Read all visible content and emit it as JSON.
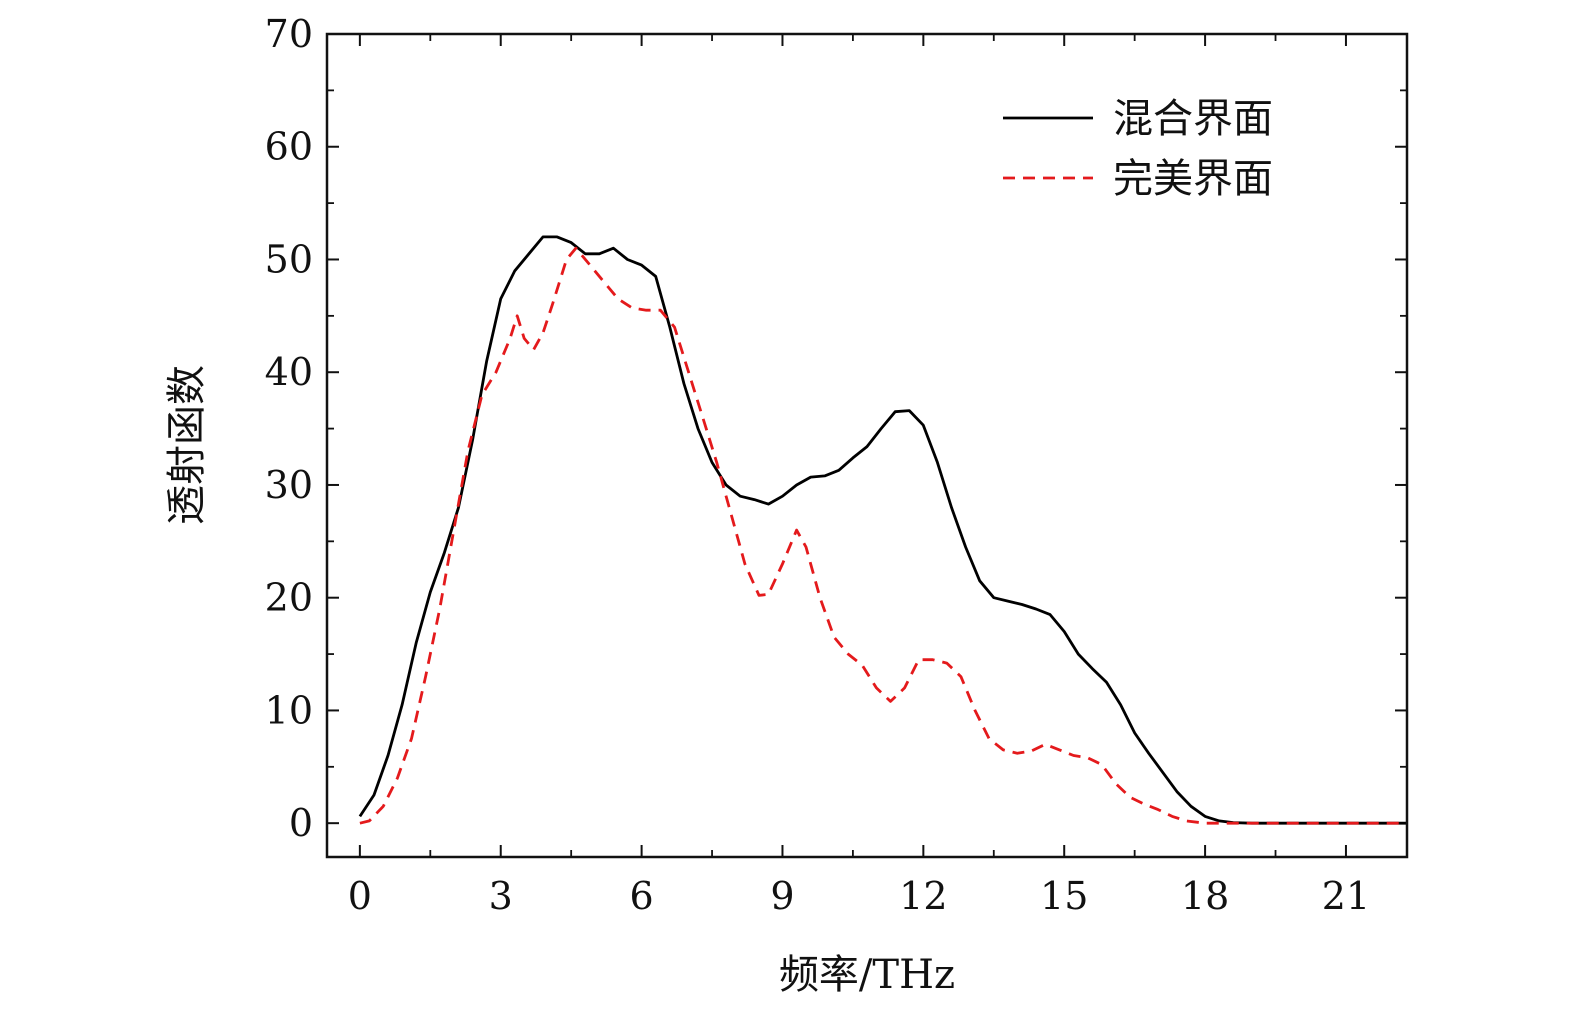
{
  "chart_data": {
    "type": "line",
    "xlabel": "频率/THz",
    "ylabel": "透射函数",
    "xlim": [
      -0.7,
      22.3
    ],
    "ylim": [
      -3,
      70
    ],
    "xticks": [
      0,
      3,
      6,
      9,
      12,
      15,
      18,
      21
    ],
    "yticks": [
      0,
      10,
      20,
      30,
      40,
      50,
      60,
      70
    ],
    "x_minor_step": 1.5,
    "y_minor_step": 5,
    "grid": false,
    "legend_position": "top-right",
    "series": [
      {
        "name": "混合界面",
        "color": "#000000",
        "style": "solid",
        "points": [
          [
            0,
            0.6
          ],
          [
            0.3,
            2.5
          ],
          [
            0.6,
            6
          ],
          [
            0.9,
            10.5
          ],
          [
            1.2,
            16
          ],
          [
            1.5,
            20.5
          ],
          [
            1.8,
            24
          ],
          [
            2.1,
            28
          ],
          [
            2.4,
            34
          ],
          [
            2.7,
            41
          ],
          [
            3.0,
            46.5
          ],
          [
            3.3,
            49
          ],
          [
            3.6,
            50.5
          ],
          [
            3.9,
            52
          ],
          [
            4.2,
            52
          ],
          [
            4.5,
            51.5
          ],
          [
            4.8,
            50.5
          ],
          [
            5.1,
            50.5
          ],
          [
            5.4,
            51
          ],
          [
            5.7,
            50
          ],
          [
            6.0,
            49.5
          ],
          [
            6.3,
            48.5
          ],
          [
            6.6,
            44
          ],
          [
            6.9,
            39
          ],
          [
            7.2,
            35
          ],
          [
            7.5,
            32
          ],
          [
            7.8,
            30
          ],
          [
            8.1,
            29
          ],
          [
            8.4,
            28.7
          ],
          [
            8.7,
            28.3
          ],
          [
            9.0,
            29
          ],
          [
            9.3,
            30
          ],
          [
            9.6,
            30.7
          ],
          [
            9.9,
            30.8
          ],
          [
            10.2,
            31.3
          ],
          [
            10.5,
            32.4
          ],
          [
            10.8,
            33.4
          ],
          [
            11.1,
            35
          ],
          [
            11.4,
            36.5
          ],
          [
            11.7,
            36.6
          ],
          [
            12.0,
            35.3
          ],
          [
            12.3,
            32
          ],
          [
            12.6,
            28
          ],
          [
            12.9,
            24.5
          ],
          [
            13.2,
            21.5
          ],
          [
            13.5,
            20
          ],
          [
            13.8,
            19.7
          ],
          [
            14.1,
            19.4
          ],
          [
            14.4,
            19
          ],
          [
            14.7,
            18.5
          ],
          [
            15.0,
            17
          ],
          [
            15.3,
            15
          ],
          [
            15.6,
            13.7
          ],
          [
            15.9,
            12.5
          ],
          [
            16.2,
            10.5
          ],
          [
            16.5,
            8
          ],
          [
            16.8,
            6.2
          ],
          [
            17.1,
            4.5
          ],
          [
            17.4,
            2.8
          ],
          [
            17.7,
            1.5
          ],
          [
            18.0,
            0.6
          ],
          [
            18.3,
            0.2
          ],
          [
            18.6,
            0.05
          ],
          [
            19.0,
            0
          ],
          [
            20.0,
            0
          ],
          [
            21.0,
            0
          ],
          [
            22.3,
            0
          ]
        ]
      },
      {
        "name": "完美界面",
        "color": "#e41a1c",
        "style": "dashed",
        "points": [
          [
            0,
            0
          ],
          [
            0.2,
            0.2
          ],
          [
            0.5,
            1.5
          ],
          [
            0.8,
            4
          ],
          [
            1.1,
            7.5
          ],
          [
            1.4,
            13
          ],
          [
            1.7,
            19
          ],
          [
            2.0,
            26
          ],
          [
            2.3,
            33
          ],
          [
            2.6,
            38
          ],
          [
            2.9,
            40
          ],
          [
            3.2,
            43
          ],
          [
            3.35,
            45
          ],
          [
            3.5,
            43
          ],
          [
            3.7,
            42
          ],
          [
            3.9,
            43.5
          ],
          [
            4.1,
            46
          ],
          [
            4.4,
            50
          ],
          [
            4.6,
            51
          ],
          [
            4.9,
            49.5
          ],
          [
            5.2,
            48
          ],
          [
            5.5,
            46.5
          ],
          [
            5.8,
            45.7
          ],
          [
            6.1,
            45.5
          ],
          [
            6.4,
            45.5
          ],
          [
            6.7,
            44
          ],
          [
            7.0,
            40
          ],
          [
            7.3,
            36
          ],
          [
            7.6,
            32
          ],
          [
            7.9,
            27.5
          ],
          [
            8.2,
            23
          ],
          [
            8.5,
            20.2
          ],
          [
            8.7,
            20.3
          ],
          [
            9.0,
            23
          ],
          [
            9.3,
            26
          ],
          [
            9.5,
            24.5
          ],
          [
            9.8,
            20
          ],
          [
            10.1,
            16.5
          ],
          [
            10.4,
            15
          ],
          [
            10.7,
            14
          ],
          [
            11.0,
            12
          ],
          [
            11.3,
            10.8
          ],
          [
            11.6,
            12
          ],
          [
            11.9,
            14.5
          ],
          [
            12.2,
            14.5
          ],
          [
            12.5,
            14.2
          ],
          [
            12.8,
            13
          ],
          [
            13.1,
            10
          ],
          [
            13.4,
            7.5
          ],
          [
            13.7,
            6.5
          ],
          [
            14.0,
            6.2
          ],
          [
            14.3,
            6.4
          ],
          [
            14.6,
            7
          ],
          [
            14.9,
            6.5
          ],
          [
            15.2,
            6
          ],
          [
            15.5,
            5.8
          ],
          [
            15.8,
            5.2
          ],
          [
            16.1,
            3.5
          ],
          [
            16.4,
            2.3
          ],
          [
            16.7,
            1.7
          ],
          [
            17.0,
            1.2
          ],
          [
            17.3,
            0.6
          ],
          [
            17.6,
            0.2
          ],
          [
            18.0,
            0
          ],
          [
            19.0,
            0
          ],
          [
            20.0,
            0
          ],
          [
            21.0,
            0
          ],
          [
            22.3,
            0
          ]
        ]
      }
    ]
  }
}
